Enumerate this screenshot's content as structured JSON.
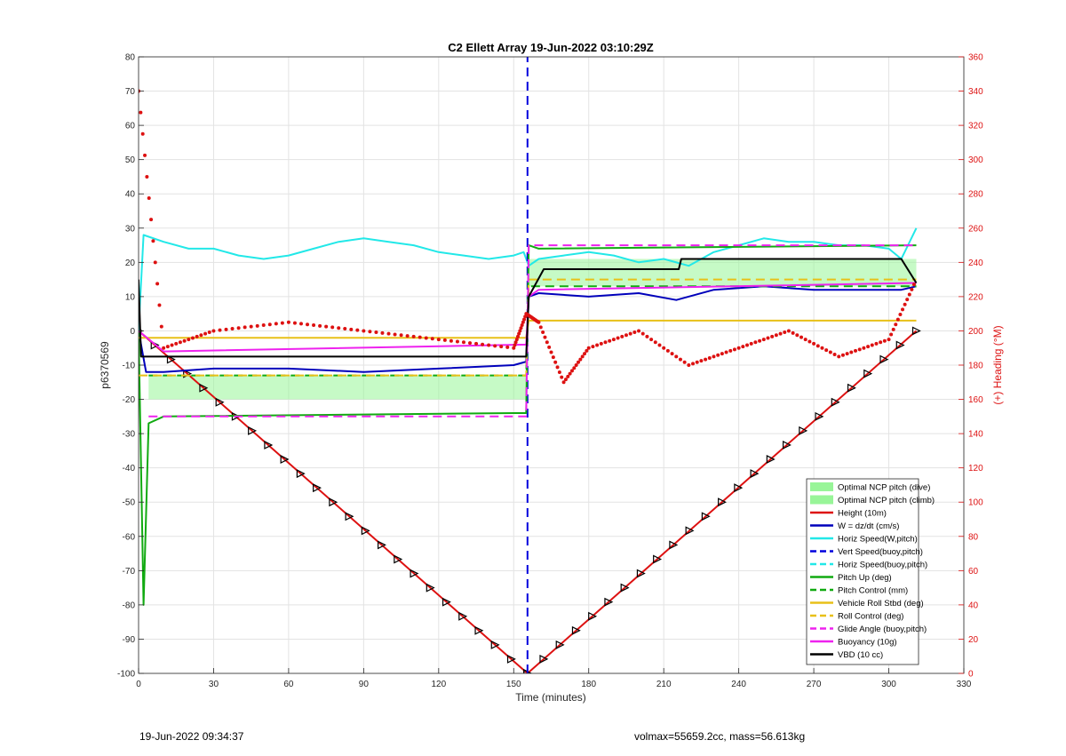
{
  "chart_data": {
    "type": "line",
    "title": "C2 Ellett Array 19-Jun-2022 03:10:29Z",
    "xlabel": "Time (minutes)",
    "ylabel": "p6370569",
    "y2label": "(+) Heading (°M)",
    "xlim": [
      0,
      330
    ],
    "ylim": [
      -100,
      80
    ],
    "y2lim": [
      0,
      360
    ],
    "xticks": [
      0,
      30,
      60,
      90,
      120,
      150,
      180,
      210,
      240,
      270,
      300,
      330
    ],
    "yticks": [
      -100,
      -90,
      -80,
      -70,
      -60,
      -50,
      -40,
      -30,
      -20,
      -10,
      0,
      10,
      20,
      30,
      40,
      50,
      60,
      70,
      80
    ],
    "y2ticks": [
      0,
      20,
      40,
      60,
      80,
      100,
      120,
      140,
      160,
      180,
      200,
      220,
      240,
      260,
      280,
      300,
      320,
      340,
      360
    ],
    "grid": true,
    "legend_position": "bottom-right",
    "legend": [
      {
        "label": "Optimal NCP pitch (dive)",
        "style": "patch",
        "color": "#98f598"
      },
      {
        "label": "Optimal NCP pitch (climb)",
        "style": "patch",
        "color": "#98f598"
      },
      {
        "label": "Height (10m)",
        "style": "solid",
        "color": "#dd1111"
      },
      {
        "label": "W = dz/dt (cm/s)",
        "style": "solid",
        "color": "#0000bb"
      },
      {
        "label": "Horiz Speed(W,pitch)",
        "style": "solid",
        "color": "#22e8e8"
      },
      {
        "label": "Vert Speed(buoy,pitch)",
        "style": "dashed",
        "color": "#0000dd"
      },
      {
        "label": "Horiz Speed(buoy,pitch)",
        "style": "dashed",
        "color": "#22e8e8"
      },
      {
        "label": "Pitch Up (deg)",
        "style": "solid",
        "color": "#11aa11"
      },
      {
        "label": "Pitch Control (mm)",
        "style": "dashed",
        "color": "#11aa11"
      },
      {
        "label": "Vehicle Roll Stbd (deg)",
        "style": "solid",
        "color": "#e8c018"
      },
      {
        "label": "Roll Control (deg)",
        "style": "dashed",
        "color": "#e8c018"
      },
      {
        "label": "Glide Angle (buoy,pitch)",
        "style": "dashed",
        "color": "#ee22ee"
      },
      {
        "label": "Buoyancy (10g)",
        "style": "solid",
        "color": "#ee22ee"
      },
      {
        "label": "VBD (10 cc)",
        "style": "solid",
        "color": "#000000"
      }
    ],
    "series": [
      {
        "name": "Height (10m)",
        "x": [
          0,
          155.5,
          311
        ],
        "values": [
          0,
          -100,
          0
        ]
      },
      {
        "name": "W = dz/dt (cm/s)",
        "x": [
          0,
          3,
          10,
          30,
          60,
          90,
          120,
          150,
          155,
          156,
          160,
          180,
          200,
          215,
          230,
          250,
          270,
          290,
          305,
          311
        ],
        "values": [
          0,
          -12,
          -12,
          -11,
          -11,
          -12,
          -11,
          -10,
          -9,
          10,
          11,
          10,
          11,
          9,
          12,
          13,
          12,
          12,
          12,
          13
        ]
      },
      {
        "name": "Horiz Speed(W,pitch)",
        "x": [
          0,
          2,
          10,
          20,
          30,
          40,
          50,
          60,
          70,
          80,
          90,
          100,
          110,
          120,
          130,
          140,
          150,
          154,
          156,
          160,
          170,
          180,
          190,
          200,
          210,
          220,
          230,
          240,
          250,
          260,
          270,
          280,
          290,
          300,
          305,
          311
        ],
        "values": [
          0,
          28,
          26,
          24,
          24,
          22,
          21,
          22,
          24,
          26,
          27,
          26,
          25,
          23,
          22,
          21,
          22,
          23,
          19,
          21,
          22,
          23,
          22,
          20,
          21,
          19,
          23,
          25,
          27,
          26,
          26,
          25,
          25,
          24,
          21,
          30
        ]
      },
      {
        "name": "Vert Speed(buoy,pitch)",
        "x": [
          155.5,
          155.5
        ],
        "values": [
          -100,
          80
        ]
      },
      {
        "name": "Pitch Up (deg)",
        "x": [
          0,
          2,
          4,
          10,
          150,
          155,
          156,
          160,
          311
        ],
        "values": [
          0,
          -80,
          -27,
          -25,
          -24,
          -24,
          25,
          24,
          25
        ]
      },
      {
        "name": "Pitch Control (mm)",
        "x": [
          4,
          155,
          156,
          311
        ],
        "values": [
          -13,
          -13,
          13,
          13
        ]
      },
      {
        "name": "Vehicle Roll Stbd (deg)",
        "x": [
          0,
          155,
          156,
          311
        ],
        "values": [
          -2,
          -2,
          3,
          3
        ]
      },
      {
        "name": "Roll Control (deg)",
        "x": [
          0,
          155,
          156,
          311
        ],
        "values": [
          -13,
          -13,
          15,
          15
        ]
      },
      {
        "name": "Glide Angle (buoy,pitch)",
        "x": [
          4,
          155,
          156,
          311
        ],
        "values": [
          -25,
          -25,
          25,
          25
        ]
      },
      {
        "name": "Buoyancy (10g)",
        "x": [
          0,
          10,
          155,
          156,
          160,
          311
        ],
        "values": [
          0,
          -6,
          -4,
          10,
          12,
          14
        ]
      },
      {
        "name": "VBD (10 cc)",
        "x": [
          0,
          1,
          155,
          156,
          162,
          216,
          217,
          305,
          311
        ],
        "values": [
          15,
          -7.5,
          -7.5,
          10,
          18,
          18,
          21,
          21,
          14
        ]
      },
      {
        "name": "Heading (°M)",
        "axis": "right",
        "x": [
          0,
          10,
          30,
          60,
          90,
          120,
          150,
          155,
          160,
          170,
          180,
          200,
          220,
          240,
          260,
          280,
          300,
          311
        ],
        "values": [
          340,
          190,
          200,
          205,
          200,
          195,
          190,
          210,
          205,
          170,
          190,
          200,
          180,
          190,
          200,
          185,
          195,
          230
        ]
      }
    ],
    "ncp_bands": [
      {
        "label": "Optimal NCP pitch (dive)",
        "x": [
          4,
          155
        ],
        "y": [
          -20,
          -13
        ]
      },
      {
        "label": "Optimal NCP pitch (climb)",
        "x": [
          156,
          311
        ],
        "y": [
          13,
          21
        ]
      }
    ]
  },
  "footer": {
    "timestamp": "19-Jun-2022 09:34:37",
    "info": "volmax=55659.2cc, mass=56.613kg"
  }
}
